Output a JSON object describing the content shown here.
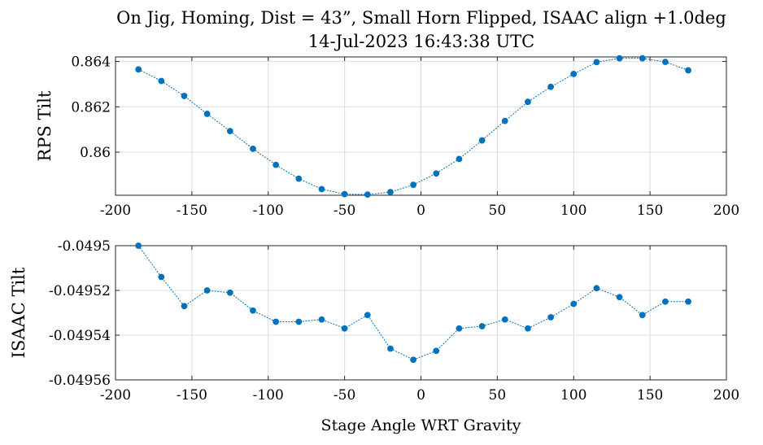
{
  "chart_data": [
    {
      "type": "line",
      "title": [
        "On Jig, Homing, Dist = 43”, Small Horn Flipped, ISAAC align +1.0deg",
        "14-Jul-2023 16:43:38 UTC"
      ],
      "xlabel": "",
      "ylabel": "RPS Tilt",
      "xlim": [
        -200,
        200
      ],
      "ylim": [
        0.8581,
        0.8642
      ],
      "xticks": [
        -200,
        -150,
        -100,
        -50,
        0,
        50,
        100,
        150,
        200
      ],
      "xtick_labels": [
        "-200",
        "-150",
        "-100",
        "-50",
        "0",
        "50",
        "100",
        "150",
        "200"
      ],
      "yticks": [
        0.86,
        0.862,
        0.864
      ],
      "ytick_labels": [
        "0.86",
        "0.862",
        "0.864"
      ],
      "grid": true,
      "color": "#0072BD",
      "x": [
        -185,
        -170,
        -155,
        -140,
        -125,
        -110,
        -95,
        -80,
        -65,
        -50,
        -35,
        -20,
        -5,
        10,
        25,
        40,
        55,
        70,
        85,
        100,
        115,
        130,
        145,
        160,
        175
      ],
      "y": [
        0.86365,
        0.86314,
        0.86248,
        0.86169,
        0.86093,
        0.86015,
        0.85944,
        0.85883,
        0.85837,
        0.85815,
        0.85813,
        0.85824,
        0.85856,
        0.85906,
        0.8597,
        0.86052,
        0.86138,
        0.86222,
        0.86288,
        0.86345,
        0.86397,
        0.86414,
        0.86414,
        0.86398,
        0.86361
      ]
    },
    {
      "type": "line",
      "title": "",
      "xlabel": "Stage Angle WRT Gravity",
      "ylabel": "ISAAC Tilt",
      "xlim": [
        -200,
        200
      ],
      "ylim": [
        -0.04956,
        -0.0495
      ],
      "xticks": [
        -200,
        -150,
        -100,
        -50,
        0,
        50,
        100,
        150,
        200
      ],
      "xtick_labels": [
        "-200",
        "-150",
        "-100",
        "-50",
        "0",
        "50",
        "100",
        "150",
        "200"
      ],
      "yticks": [
        -0.0495,
        -0.04952,
        -0.04954,
        -0.04956
      ],
      "ytick_labels": [
        "-0.0495",
        "-0.04952",
        "-0.04954",
        "-0.04956"
      ],
      "grid": true,
      "color": "#0072BD",
      "x": [
        -185,
        -170,
        -155,
        -140,
        -125,
        -110,
        -95,
        -80,
        -65,
        -50,
        -35,
        -20,
        -5,
        10,
        25,
        40,
        55,
        70,
        85,
        100,
        115,
        130,
        145,
        160,
        175
      ],
      "y": [
        -0.0495,
        -0.049514,
        -0.049527,
        -0.04952,
        -0.049521,
        -0.049529,
        -0.049534,
        -0.049534,
        -0.049533,
        -0.049537,
        -0.049531,
        -0.049546,
        -0.049551,
        -0.049547,
        -0.049537,
        -0.049536,
        -0.049533,
        -0.049537,
        -0.049532,
        -0.049526,
        -0.049519,
        -0.049523,
        -0.049531,
        -0.049525,
        -0.049525
      ]
    }
  ]
}
